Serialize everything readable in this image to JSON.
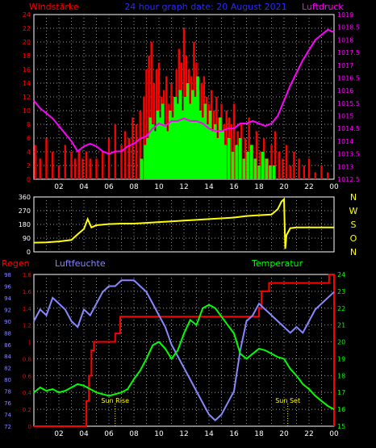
{
  "header": {
    "left_title": "Windstärke",
    "center_title": "24 hour graph date: 20 August 2021",
    "right_title": "Luftdruck"
  },
  "bottom": {
    "left_title": "Regen",
    "center_title": "Luftfeuchte",
    "right_title": "Temperatur"
  },
  "direction_letters": [
    "N",
    "W",
    "S",
    "O",
    "N"
  ],
  "colors": {
    "background": "#000000",
    "grid": "#9a9a9a",
    "axis": "#ffffff",
    "wind_speed": "#ff0000",
    "wind_gust": "#00ff00",
    "pressure": "#ff00ff",
    "wind_dir": "#ffff00",
    "rain": "#ff0000",
    "humidity": "#8888ff",
    "temperature": "#00ff00",
    "title_blue": "#2a2aff",
    "sun_label": "#ffff00"
  },
  "annotations": {
    "sunrise": "Sun Rise",
    "sunset": "Sun Set"
  },
  "chart_data": [
    {
      "type": "bar+line",
      "title": "24 hour graph date: 20 August 2021",
      "xlabel": "",
      "ylabel_left": "Windstärke",
      "ylabel_right": "Luftdruck",
      "x_ticks": [
        "02",
        "04",
        "06",
        "08",
        "10",
        "12",
        "14",
        "16",
        "18",
        "20",
        "22",
        "00"
      ],
      "xlim": [
        0,
        24
      ],
      "ylim_left": [
        0,
        24
      ],
      "yticks_left": [
        0,
        2,
        4,
        6,
        8,
        10,
        12,
        14,
        16,
        18,
        20,
        22,
        24
      ],
      "ylim_right": [
        1012.5,
        1019.0
      ],
      "yticks_right": [
        "1012.5",
        "1013",
        "1013.5",
        "1014",
        "1014.5",
        "1015",
        "1015.5",
        "1016",
        "1016.5",
        "1017",
        "1017.5",
        "1018",
        "1018.5",
        "1019"
      ],
      "grid": true,
      "series": [
        {
          "name": "Windstärke",
          "kind": "bars",
          "x": [
            0.1,
            0.5,
            1.0,
            1.5,
            2.0,
            2.5,
            3.0,
            3.3,
            3.6,
            3.9,
            4.2,
            4.5,
            5.0,
            5.5,
            6.0,
            6.5,
            7.0,
            7.3,
            7.6,
            7.9,
            8.2,
            8.5,
            8.8,
            9.0,
            9.2,
            9.4,
            9.6,
            9.8,
            10.0,
            10.2,
            10.4,
            10.6,
            10.8,
            11.0,
            11.2,
            11.4,
            11.6,
            11.8,
            12.0,
            12.2,
            12.4,
            12.6,
            12.8,
            13.0,
            13.2,
            13.4,
            13.6,
            13.8,
            14.0,
            14.2,
            14.4,
            14.6,
            14.8,
            15.0,
            15.2,
            15.4,
            15.6,
            15.8,
            16.0,
            16.3,
            16.6,
            16.9,
            17.2,
            17.5,
            17.8,
            18.1,
            18.4,
            18.7,
            19.0,
            19.3,
            19.6,
            19.9,
            20.2,
            20.5,
            20.8,
            21.2,
            21.6,
            22.0,
            22.5,
            23.0,
            23.5
          ],
          "values": [
            5,
            3,
            6,
            4,
            2,
            5,
            4,
            3,
            4,
            3,
            4,
            3,
            3,
            4,
            6,
            8,
            5,
            7,
            6,
            9,
            8,
            10,
            12,
            16,
            18,
            20,
            14,
            16,
            17,
            12,
            13,
            15,
            11,
            14,
            12,
            16,
            19,
            17,
            22,
            18,
            16,
            15,
            20,
            17,
            13,
            14,
            15,
            12,
            11,
            13,
            10,
            12,
            9,
            11,
            8,
            10,
            9,
            8,
            11,
            7,
            8,
            6,
            9,
            5,
            7,
            4,
            6,
            3,
            5,
            7,
            4,
            3,
            5,
            2,
            4,
            3,
            2,
            3,
            1,
            2,
            1
          ]
        },
        {
          "name": "Böen",
          "kind": "bars",
          "x": [
            8.6,
            8.9,
            9.1,
            9.3,
            9.5,
            9.7,
            9.9,
            10.1,
            10.3,
            10.5,
            10.7,
            10.9,
            11.1,
            11.3,
            11.5,
            11.7,
            11.9,
            12.1,
            12.3,
            12.5,
            12.7,
            12.9,
            13.1,
            13.3,
            13.5,
            13.7,
            13.9,
            14.1,
            14.3,
            14.5,
            14.7,
            14.9,
            15.1,
            15.3,
            15.6,
            15.9,
            16.2,
            16.5,
            16.8,
            17.1,
            17.4,
            17.7,
            18.0,
            18.3,
            18.6,
            18.9,
            19.2
          ],
          "values": [
            3,
            5,
            6,
            9,
            8,
            7,
            10,
            9,
            11,
            8,
            7,
            10,
            9,
            12,
            11,
            13,
            10,
            12,
            14,
            11,
            13,
            12,
            15,
            10,
            9,
            11,
            8,
            10,
            7,
            8,
            6,
            9,
            7,
            5,
            6,
            4,
            5,
            6,
            3,
            4,
            5,
            3,
            2,
            4,
            3,
            2,
            2
          ]
        },
        {
          "name": "Luftdruck",
          "kind": "line",
          "axis": "right",
          "x": [
            0,
            0.5,
            1.0,
            1.5,
            2.0,
            2.5,
            3.0,
            3.5,
            4.0,
            4.5,
            5.0,
            5.5,
            6.0,
            6.5,
            7.0,
            7.5,
            8.0,
            8.5,
            9.0,
            9.5,
            10.0,
            10.5,
            11.0,
            11.5,
            12.0,
            12.5,
            13.0,
            13.5,
            14.0,
            14.5,
            15.0,
            15.5,
            16.0,
            16.5,
            17.0,
            17.5,
            18.0,
            18.5,
            19.0,
            19.5,
            20.0,
            20.5,
            21.0,
            21.5,
            22.0,
            22.5,
            23.0,
            23.5,
            24.0
          ],
          "values": [
            1015.6,
            1015.3,
            1015.1,
            1014.9,
            1014.6,
            1014.3,
            1014.0,
            1013.6,
            1013.8,
            1013.9,
            1013.8,
            1013.6,
            1013.5,
            1013.6,
            1013.6,
            1013.8,
            1013.9,
            1014.1,
            1014.2,
            1014.5,
            1014.7,
            1014.6,
            1014.8,
            1014.8,
            1014.9,
            1014.8,
            1014.8,
            1014.7,
            1014.5,
            1014.4,
            1014.4,
            1014.5,
            1014.5,
            1014.7,
            1014.7,
            1014.8,
            1014.7,
            1014.6,
            1014.7,
            1015.0,
            1015.6,
            1016.2,
            1016.7,
            1017.2,
            1017.6,
            1018.0,
            1018.2,
            1018.4,
            1018.3
          ]
        }
      ]
    },
    {
      "type": "line",
      "title": "",
      "ylim": [
        0,
        360
      ],
      "yticks": [
        0,
        90,
        180,
        270,
        360
      ],
      "xlim": [
        0,
        24
      ],
      "grid": true,
      "series": [
        {
          "name": "Windrichtung",
          "x": [
            0,
            1,
            2,
            3,
            3.5,
            4.0,
            4.3,
            4.6,
            5,
            6,
            7,
            8,
            9,
            10,
            11,
            12,
            13,
            14,
            15,
            16,
            17,
            18,
            19,
            19.5,
            19.8,
            20.0,
            20.1,
            20.2,
            20.5,
            21,
            22,
            23,
            24
          ],
          "values": [
            60,
            62,
            68,
            78,
            115,
            150,
            215,
            160,
            175,
            182,
            185,
            185,
            190,
            195,
            200,
            205,
            210,
            215,
            220,
            225,
            235,
            240,
            245,
            280,
            330,
            345,
            20,
            110,
            155,
            160,
            160,
            160,
            160
          ]
        }
      ]
    },
    {
      "type": "line",
      "title": "",
      "ylim_left": [
        0,
        1.8
      ],
      "yticks_left": [
        "0",
        "0.2",
        "0.4",
        "0.6",
        "0.8",
        "1",
        "1.2",
        "1.4",
        "1.6",
        "1.8"
      ],
      "ylim_humidity": [
        72,
        98
      ],
      "yticks_humidity": [
        "72",
        "74",
        "76",
        "78",
        "80",
        "82",
        "84",
        "86",
        "88",
        "90",
        "92",
        "94",
        "96",
        "98"
      ],
      "ylim_right": [
        15,
        24
      ],
      "yticks_right": [
        "15",
        "16",
        "17",
        "18",
        "19",
        "20",
        "21",
        "22",
        "23",
        "24"
      ],
      "x_ticks": [
        "02",
        "04",
        "06",
        "08",
        "10",
        "12",
        "14",
        "16",
        "18",
        "20",
        "22",
        "00"
      ],
      "xlim": [
        0,
        24
      ],
      "grid": true,
      "series": [
        {
          "name": "Regen",
          "axis": "left",
          "x": [
            0,
            4.0,
            4.2,
            4.4,
            4.6,
            4.8,
            5.0,
            6.0,
            6.5,
            6.9,
            7.2,
            8.0,
            10.0,
            12.0,
            14.0,
            16.0,
            17.8,
            18.0,
            18.2,
            18.8,
            19.2,
            20.0,
            21.0,
            22.0,
            23.0,
            23.6,
            23.8,
            24.0
          ],
          "values": [
            0,
            0,
            0.3,
            0.6,
            0.9,
            1.0,
            1.0,
            1.0,
            1.1,
            1.3,
            1.3,
            1.3,
            1.3,
            1.3,
            1.3,
            1.3,
            1.3,
            1.4,
            1.6,
            1.7,
            1.7,
            1.7,
            1.7,
            1.7,
            1.7,
            1.8,
            1.8,
            0
          ]
        },
        {
          "name": "Luftfeuchte",
          "axis": "humidity",
          "x": [
            0,
            0.5,
            1.0,
            1.5,
            2.0,
            2.5,
            3.0,
            3.5,
            4.0,
            4.5,
            5.0,
            5.5,
            6.0,
            6.5,
            7.0,
            7.5,
            8.0,
            8.5,
            9.0,
            9.5,
            10.0,
            10.5,
            11.0,
            11.5,
            12.0,
            12.5,
            13.0,
            13.5,
            14.0,
            14.5,
            15.0,
            15.5,
            16.0,
            16.5,
            17.0,
            17.5,
            18.0,
            18.5,
            19.0,
            19.5,
            20.0,
            20.5,
            21.0,
            21.5,
            22.0,
            22.5,
            23.0,
            23.5,
            24.0
          ],
          "values": [
            90,
            92,
            91,
            94,
            93,
            92,
            90,
            89,
            92,
            91,
            93,
            95,
            96,
            96,
            97,
            97,
            97,
            96,
            95,
            93,
            91,
            89,
            86,
            84,
            82,
            80,
            78,
            76,
            74,
            73,
            74,
            76,
            78,
            85,
            90,
            91,
            93,
            92,
            91,
            90,
            89,
            88,
            89,
            88,
            90,
            92,
            93,
            94,
            95
          ]
        },
        {
          "name": "Temperatur",
          "axis": "right",
          "x": [
            0,
            0.5,
            1.0,
            1.5,
            2.0,
            2.5,
            3.0,
            3.5,
            4.0,
            4.5,
            5.0,
            5.5,
            6.0,
            6.5,
            7.0,
            7.5,
            8.0,
            8.5,
            9.0,
            9.5,
            10.0,
            10.5,
            11.0,
            11.5,
            12.0,
            12.5,
            13.0,
            13.5,
            14.0,
            14.5,
            15.0,
            15.5,
            16.0,
            16.5,
            17.0,
            17.5,
            18.0,
            18.5,
            19.0,
            19.5,
            20.0,
            20.5,
            21.0,
            21.5,
            22.0,
            22.5,
            23.0,
            23.5,
            24.0
          ],
          "values": [
            17.0,
            17.3,
            17.1,
            17.2,
            17.0,
            17.1,
            17.3,
            17.5,
            17.4,
            17.2,
            17.0,
            16.9,
            16.8,
            16.9,
            17.0,
            17.2,
            17.8,
            18.3,
            19.0,
            19.8,
            20.0,
            19.6,
            19.0,
            19.5,
            20.5,
            21.3,
            21.0,
            22.0,
            22.2,
            22.0,
            21.5,
            21.0,
            20.5,
            19.3,
            19.0,
            19.3,
            19.6,
            19.5,
            19.3,
            19.1,
            19.0,
            18.4,
            18.0,
            17.5,
            17.2,
            16.8,
            16.5,
            16.2,
            16.0
          ]
        }
      ],
      "annotations": [
        {
          "label": "Sun Rise",
          "x": 6.5
        },
        {
          "label": "Sun Set",
          "x": 20.3
        }
      ]
    }
  ]
}
